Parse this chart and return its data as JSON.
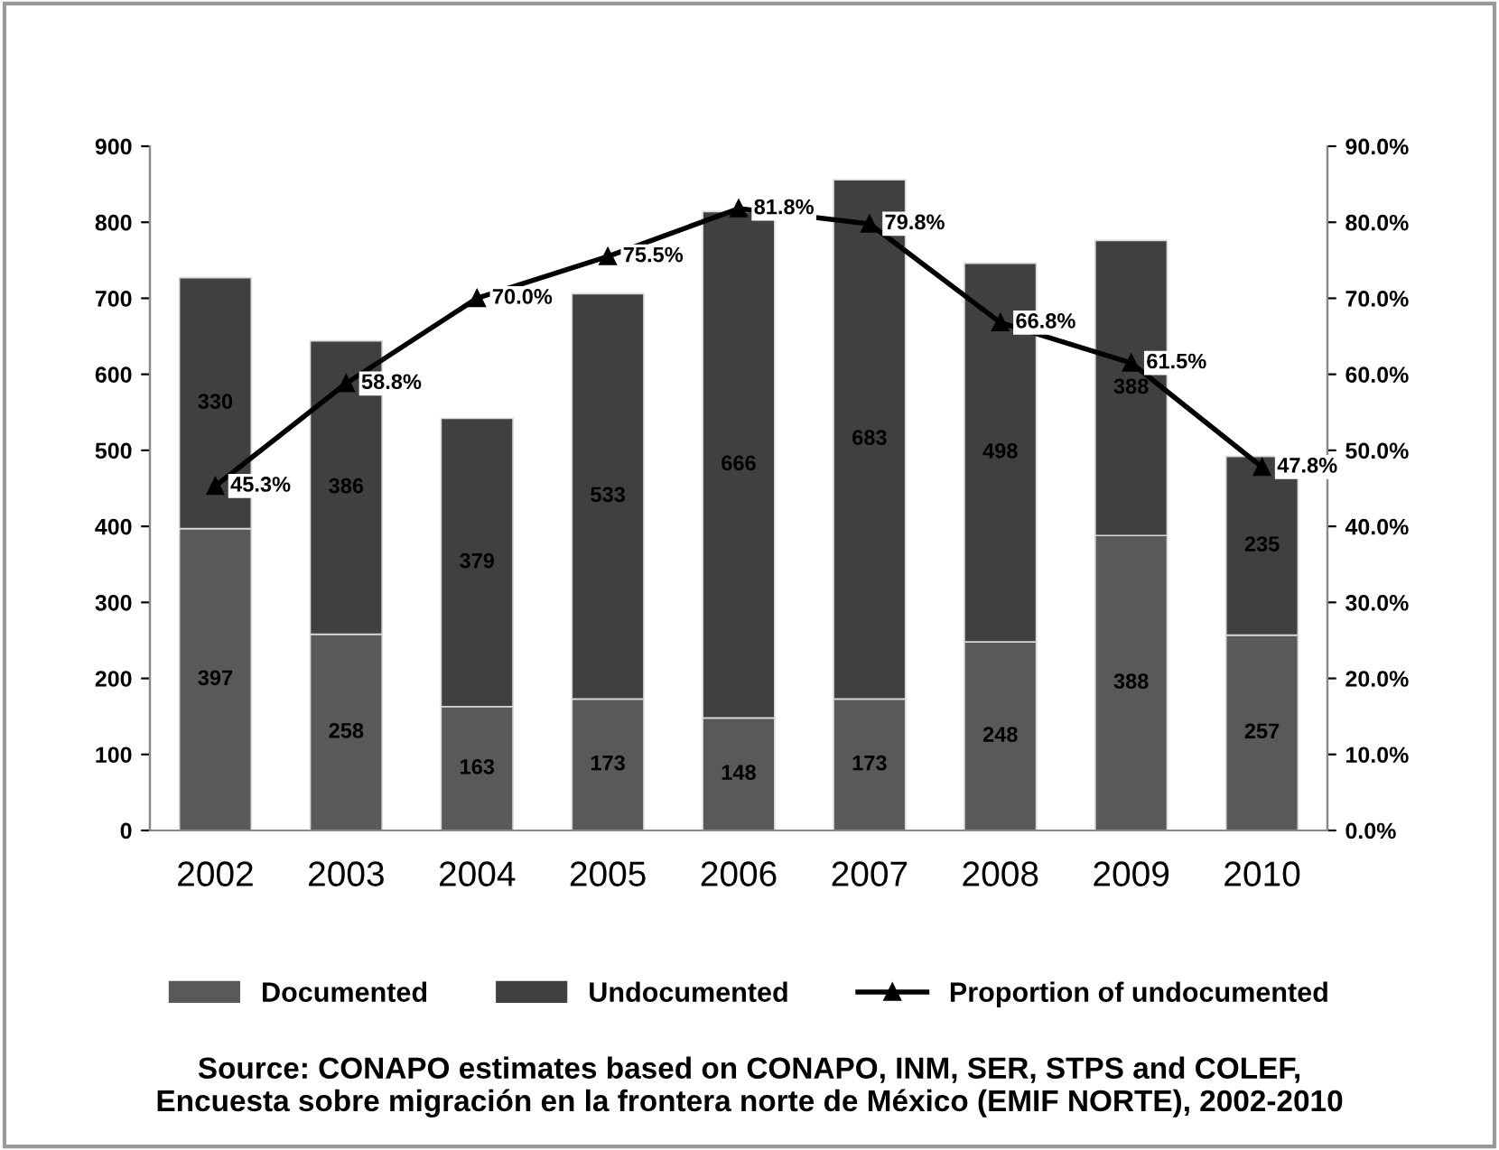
{
  "chart_data": {
    "type": "bar",
    "stacked": true,
    "categories": [
      "2002",
      "2003",
      "2004",
      "2005",
      "2006",
      "2007",
      "2008",
      "2009",
      "2010"
    ],
    "series": [
      {
        "name": "Documented",
        "color": "#595959",
        "values": [
          397,
          258,
          163,
          173,
          148,
          173,
          248,
          388,
          257
        ],
        "value_labels": [
          "397",
          "258",
          "163",
          "173",
          "148",
          "173",
          "248",
          "388",
          "257"
        ]
      },
      {
        "name": "Undocumented",
        "color": "#404040",
        "values": [
          330,
          386,
          379,
          533,
          666,
          683,
          498,
          388,
          235
        ],
        "value_labels": [
          "330",
          "386",
          "379",
          "533",
          "666",
          "683",
          "498",
          "388",
          "235"
        ]
      },
      {
        "name": "Proportion of undocumented",
        "type": "line",
        "axis": "y2",
        "color": "#000000",
        "marker": "triangle",
        "line_style": "solid",
        "values": [
          45.3,
          58.8,
          70.0,
          75.5,
          81.8,
          79.8,
          66.8,
          61.5,
          47.8
        ],
        "value_labels": [
          "45.3%",
          "58.8%",
          "70.0%",
          "75.5%",
          "81.8%",
          "79.8%",
          "66.8%",
          "61.5%",
          "47.8%"
        ]
      }
    ],
    "ylim": [
      0,
      900
    ],
    "yticks": [
      0,
      100,
      200,
      300,
      400,
      500,
      600,
      700,
      800,
      900
    ],
    "y2lim": [
      0,
      90
    ],
    "y2ticks": [
      {
        "value": 0,
        "label": "0.0%"
      },
      {
        "value": 10,
        "label": "10.0%"
      },
      {
        "value": 20,
        "label": "20.0%"
      },
      {
        "value": 30,
        "label": "30.0%"
      },
      {
        "value": 40,
        "label": "40.0%"
      },
      {
        "value": 50,
        "label": "50.0%"
      },
      {
        "value": 60,
        "label": "60.0%"
      },
      {
        "value": 70,
        "label": "70.0%"
      },
      {
        "value": 80,
        "label": "80.0%"
      },
      {
        "value": 90,
        "label": "90.0%"
      }
    ],
    "grid": false,
    "legend": "bottom",
    "annotations": [
      "Source: CONAPO estimates based on CONAPO, INM, SER, STPS and COLEF,\nEncuesta sobre migración en la frontera norte de México (EMIF NORTE), 2002-2010"
    ]
  }
}
